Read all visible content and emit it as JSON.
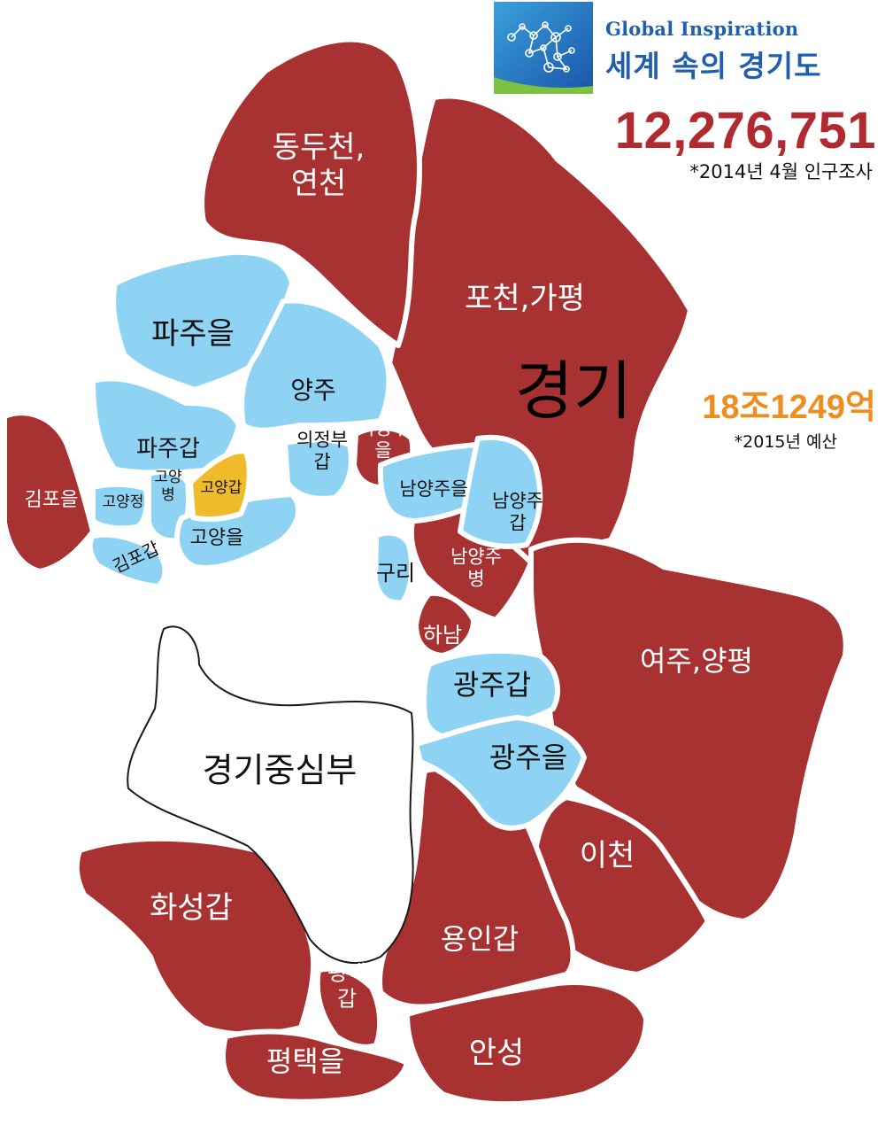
{
  "header": {
    "brand_en": "Global Inspiration",
    "brand_ko": "세계 속의 경기도",
    "population": "12,276,751",
    "population_note": "*2014년 4월 인구조사",
    "budget": "18조1249억",
    "budget_note": "*2015년 예산",
    "logo_icon": "globe-network-logo-icon"
  },
  "map": {
    "province_label": "경기",
    "center_label": "경기중심부",
    "colors": {
      "red": "#a83232",
      "blue": "#8fd3f4",
      "gold": "#f0bb2a",
      "white": "#ffffff"
    },
    "districts": [
      {
        "id": "dongducheon-yeoncheon",
        "label": "동두천,\n연천",
        "color": "red"
      },
      {
        "id": "pocheon-gapyeong",
        "label": "포천,가평",
        "color": "red"
      },
      {
        "id": "paju-eul",
        "label": "파주을",
        "color": "blue"
      },
      {
        "id": "yangju",
        "label": "양주",
        "color": "blue"
      },
      {
        "id": "paju-gap",
        "label": "파주갑",
        "color": "blue"
      },
      {
        "id": "uijeongbu-gap",
        "label": "의정부\n갑",
        "color": "blue"
      },
      {
        "id": "uijeongbu-eul",
        "label": "의정부\n을",
        "color": "red"
      },
      {
        "id": "gimpo-eul",
        "label": "김포을",
        "color": "red"
      },
      {
        "id": "goyang-jeong",
        "label": "고양정",
        "color": "blue"
      },
      {
        "id": "goyang-byeong",
        "label": "고양\n병",
        "color": "blue"
      },
      {
        "id": "goyang-gap",
        "label": "고양갑",
        "color": "gold"
      },
      {
        "id": "goyang-eul",
        "label": "고양을",
        "color": "blue"
      },
      {
        "id": "gimpo-gap",
        "label": "김포갑",
        "color": "blue"
      },
      {
        "id": "namyangju-eul",
        "label": "남양주을",
        "color": "blue"
      },
      {
        "id": "namyangju-gap",
        "label": "남양주\n갑",
        "color": "blue"
      },
      {
        "id": "guri",
        "label": "구리",
        "color": "blue"
      },
      {
        "id": "namyangju-byeong",
        "label": "남양주\n병",
        "color": "red"
      },
      {
        "id": "hanam",
        "label": "하남",
        "color": "red"
      },
      {
        "id": "gwangju-gap",
        "label": "광주갑",
        "color": "blue"
      },
      {
        "id": "gwangju-eul",
        "label": "광주을",
        "color": "blue"
      },
      {
        "id": "yeoju-yangpyeong",
        "label": "여주,양평",
        "color": "red"
      },
      {
        "id": "icheon",
        "label": "이천",
        "color": "red"
      },
      {
        "id": "yongin-gap",
        "label": "용인갑",
        "color": "red"
      },
      {
        "id": "hwaseong-gap",
        "label": "화성갑",
        "color": "red"
      },
      {
        "id": "pyeongtaek-gap",
        "label": "평택\n갑",
        "color": "red"
      },
      {
        "id": "pyeongtaek-eul",
        "label": "평택을",
        "color": "red"
      },
      {
        "id": "anseong",
        "label": "안성",
        "color": "red"
      }
    ]
  }
}
